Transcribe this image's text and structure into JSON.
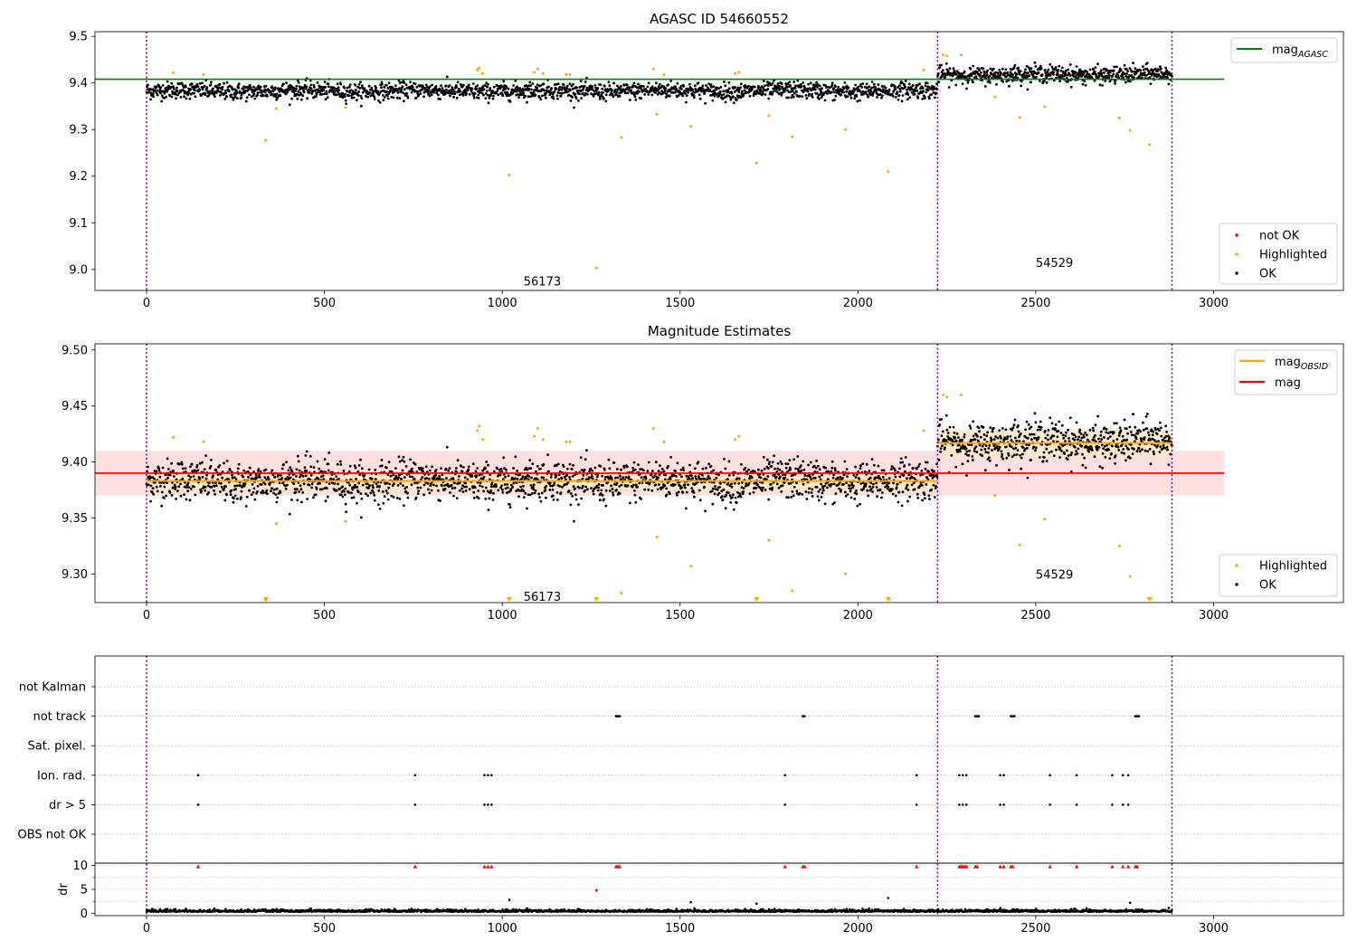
{
  "chart_data": [
    {
      "type": "scatter",
      "title": "AGASC ID 54660552",
      "xlim": [
        -145,
        3365
      ],
      "ylim": [
        8.955,
        9.51
      ],
      "xticks": [
        0,
        500,
        1000,
        1500,
        2000,
        2500,
        3000
      ],
      "yticks": [
        9.0,
        9.1,
        9.2,
        9.3,
        9.4,
        9.5
      ],
      "ytick_labels": [
        "9.0",
        "9.1",
        "9.2",
        "9.3",
        "9.4",
        "9.5"
      ],
      "mag_agasc": {
        "value": 9.408,
        "x_range": [
          -145,
          3030
        ]
      },
      "obs_boundaries": [
        0,
        2224,
        2883
      ],
      "obs_labels": [
        {
          "text": "56173",
          "x": 1060,
          "y": 8.975
        },
        {
          "text": "54529",
          "x": 2500,
          "y": 9.015
        }
      ],
      "segments": [
        {
          "x_range": [
            0,
            2224
          ],
          "center": 9.383,
          "spread": 0.009
        },
        {
          "x_range": [
            2224,
            2883
          ],
          "center": 9.418,
          "spread": 0.009
        }
      ],
      "highlighted": [
        [
          75,
          9.422
        ],
        [
          160,
          9.418
        ],
        [
          335,
          9.277
        ],
        [
          365,
          9.345
        ],
        [
          560,
          9.347
        ],
        [
          930,
          9.428
        ],
        [
          935,
          9.432
        ],
        [
          945,
          9.42
        ],
        [
          1020,
          9.203
        ],
        [
          1090,
          9.423
        ],
        [
          1100,
          9.43
        ],
        [
          1115,
          9.42
        ],
        [
          1180,
          9.418
        ],
        [
          1190,
          9.418
        ],
        [
          1265,
          9.003
        ],
        [
          1335,
          9.283
        ],
        [
          1425,
          9.43
        ],
        [
          1435,
          9.333
        ],
        [
          1455,
          9.418
        ],
        [
          1530,
          9.307
        ],
        [
          1655,
          9.42
        ],
        [
          1665,
          9.423
        ],
        [
          1715,
          9.228
        ],
        [
          1750,
          9.33
        ],
        [
          1815,
          9.285
        ],
        [
          1965,
          9.3
        ],
        [
          2085,
          9.21
        ],
        [
          2185,
          9.428
        ],
        [
          2240,
          9.46
        ],
        [
          2250,
          9.458
        ],
        [
          2290,
          9.46
        ],
        [
          2385,
          9.37
        ],
        [
          2455,
          9.326
        ],
        [
          2525,
          9.349
        ],
        [
          2735,
          9.325
        ],
        [
          2765,
          9.298
        ],
        [
          2820,
          9.268
        ]
      ],
      "legend_bottom": [
        "not OK",
        "Highlighted",
        "OK"
      ],
      "legend_top": [
        {
          "main": "mag",
          "sub": "AGASC"
        }
      ],
      "colors": {
        "ok": "#000000",
        "highlighted": "#FFA500",
        "not_ok": "#FF0000",
        "agasc_line": "#008000",
        "boundary": "#800080"
      }
    },
    {
      "type": "scatter",
      "title": "Magnitude Estimates",
      "xlim": [
        -145,
        3365
      ],
      "ylim": [
        9.2745,
        9.5055
      ],
      "xticks": [
        0,
        500,
        1000,
        1500,
        2000,
        2500,
        3000
      ],
      "yticks": [
        9.3,
        9.35,
        9.4,
        9.45,
        9.5
      ],
      "ytick_labels": [
        "9.30",
        "9.35",
        "9.40",
        "9.45",
        "9.50"
      ],
      "mag": {
        "value": 9.39,
        "band": [
          9.37,
          9.41
        ],
        "x_range": [
          -145,
          3030
        ]
      },
      "mag_obsid": [
        {
          "x_range": [
            0,
            2224
          ],
          "value": 9.383,
          "band": [
            9.375,
            9.391
          ]
        },
        {
          "x_range": [
            2224,
            2883
          ],
          "value": 9.417,
          "band": [
            9.405,
            9.429
          ]
        }
      ],
      "obs_boundaries": [
        0,
        2224,
        2883
      ],
      "obs_labels": [
        {
          "text": "56173",
          "x": 1060,
          "y": 9.28
        },
        {
          "text": "54529",
          "x": 2500,
          "y": 9.3
        }
      ],
      "clipped_below": [
        335,
        1020,
        1265,
        1715,
        2085,
        2820
      ],
      "legend_bottom": [
        "Highlighted",
        "OK"
      ],
      "legend_top": [
        {
          "main": "mag",
          "sub": "OBSID"
        },
        {
          "main": "mag",
          "sub": ""
        }
      ],
      "colors": {
        "ok": "#000000",
        "highlighted": "#FFA500",
        "mag_line": "#FF0000",
        "mag_band": "#FFE0E0",
        "obsid_line": "#FFA500",
        "obsid_band": "#FFE9C8"
      }
    },
    {
      "type": "scatter",
      "title": "",
      "xlim": [
        -145,
        3365
      ],
      "xticks": [
        0,
        500,
        1000,
        1500,
        2000,
        2500,
        3000
      ],
      "flag_categories": [
        "not Kalman",
        "not track",
        "Sat. pixel.",
        "Ion. rad.",
        "dr > 5",
        "OBS not OK"
      ],
      "flags": {
        "not track": [
          1320,
          1325,
          1330,
          1845,
          1850,
          2330,
          2335,
          2340,
          2430,
          2435,
          2440,
          2780,
          2785,
          2790
        ],
        "Ion. rad.": [
          145,
          755,
          950,
          960,
          970,
          1795,
          2165,
          2285,
          2295,
          2305,
          2400,
          2410,
          2540,
          2615,
          2715,
          2745,
          2760
        ],
        "dr > 5": [
          145,
          755,
          950,
          960,
          970,
          1795,
          2165,
          2285,
          2295,
          2305,
          2400,
          2410,
          2540,
          2615,
          2715,
          2745,
          2760
        ]
      },
      "dr": {
        "ylabel": "dr",
        "ylim": [
          -0.5,
          10.5
        ],
        "yticks": [
          0,
          5,
          10
        ],
        "ytick_labels": [
          "0",
          "5",
          "10"
        ],
        "clipped_at_10": [
          145,
          755,
          950,
          960,
          970,
          1320,
          1325,
          1330,
          1795,
          1845,
          1850,
          2165,
          2285,
          2290,
          2295,
          2300,
          2305,
          2330,
          2335,
          2400,
          2410,
          2430,
          2435,
          2540,
          2615,
          2715,
          2745,
          2760,
          2780,
          2785
        ],
        "outliers": [
          [
            1020,
            2.8
          ],
          [
            1265,
            4.8
          ],
          [
            1530,
            2.3
          ],
          [
            1715,
            2.0
          ],
          [
            2085,
            3.2
          ],
          [
            2765,
            2.2
          ]
        ]
      },
      "obs_boundaries": [
        0,
        2224,
        2883
      ],
      "colors": {
        "flag": "#000000",
        "dr_clip": "#FF0000",
        "grid": "#B0B0B0",
        "boundary": "#800080"
      }
    }
  ]
}
